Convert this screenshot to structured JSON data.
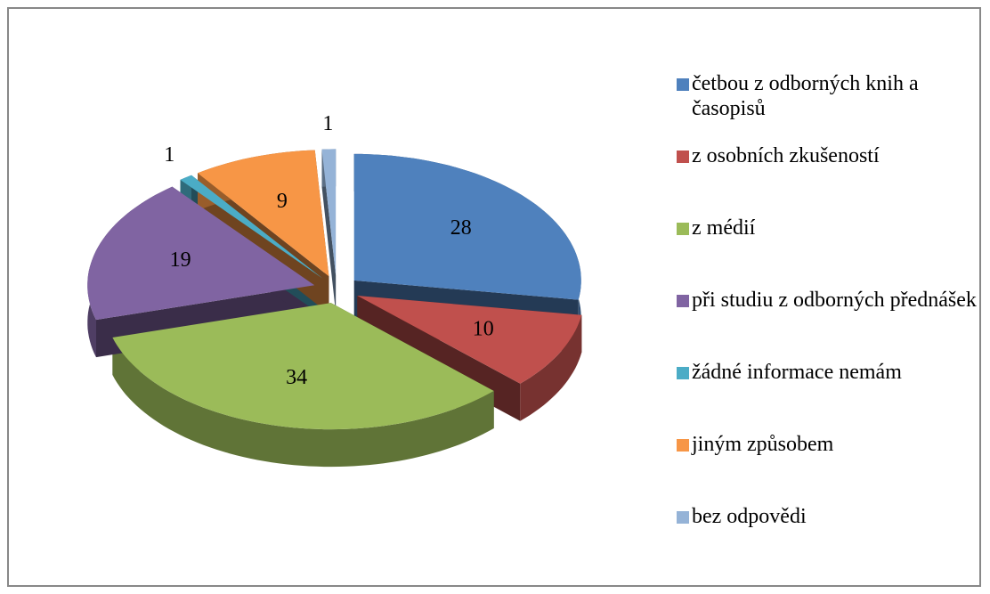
{
  "chart_data": {
    "type": "pie",
    "categories": [
      "četbou z odborných knih a časopisů",
      "z osobních zkušeností",
      "z médií",
      "při studiu z odborných přednášek",
      "žádné informace nemám",
      "jiným způsobem",
      "bez odpovědi"
    ],
    "values": [
      28,
      10,
      34,
      19,
      1,
      9,
      1
    ],
    "colors": [
      "#4f81bd",
      "#c0504d",
      "#9bbb59",
      "#8064a2",
      "#4bacc6",
      "#f79646",
      "#95b3d7"
    ],
    "legend": "right"
  }
}
